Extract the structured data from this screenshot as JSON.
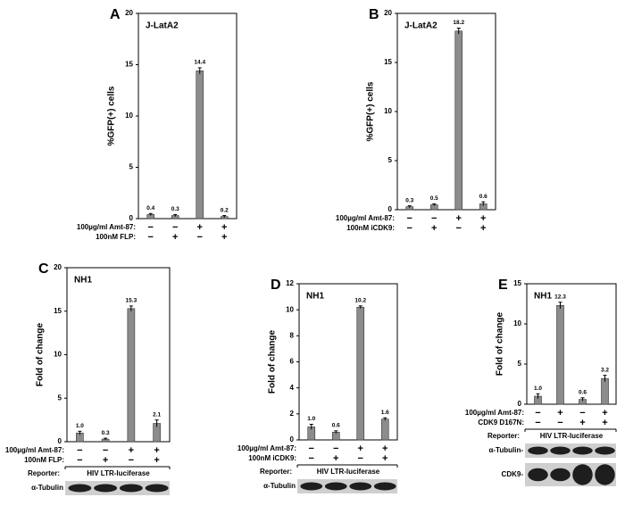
{
  "chart_data": [
    {
      "type": "bar",
      "panel": "A",
      "cell": "J-LatA2",
      "y_label": "%GFP(+) cells",
      "values": [
        0.4,
        0.3,
        14.4,
        0.2
      ],
      "errors": [
        0.1,
        0.1,
        0.3,
        0.1
      ],
      "color": "#8c8c8c",
      "ylim": [
        0,
        20
      ],
      "yticks": [
        0,
        5,
        10,
        15,
        20
      ],
      "conditions": [
        {
          "label": "100µg/ml Amt-87:",
          "signs": [
            "−",
            "−",
            "+",
            "+"
          ]
        },
        {
          "label": "100nM FLP:",
          "signs": [
            "−",
            "+",
            "−",
            "+"
          ]
        }
      ]
    },
    {
      "type": "bar",
      "panel": "B",
      "cell": "J-LatA2",
      "y_label": "%GFP(+) cells",
      "values": [
        0.3,
        0.5,
        18.2,
        0.6
      ],
      "errors": [
        0.1,
        0.1,
        0.3,
        0.2
      ],
      "color": "#8c8c8c",
      "ylim": [
        0,
        20
      ],
      "yticks": [
        0,
        5,
        10,
        15,
        20
      ],
      "conditions": [
        {
          "label": "100µg/ml Amt-87:",
          "signs": [
            "−",
            "−",
            "+",
            "+"
          ]
        },
        {
          "label": "100nM iCDK9:",
          "signs": [
            "−",
            "+",
            "−",
            "+"
          ]
        }
      ]
    },
    {
      "type": "bar",
      "panel": "C",
      "cell": "NH1",
      "y_label": "Fold of change",
      "values": [
        1,
        0.3,
        15.3,
        2.1
      ],
      "value_labels": [
        "1.0",
        "0.3",
        "15.3",
        "2.1"
      ],
      "errors": [
        0.2,
        0.1,
        0.3,
        0.4
      ],
      "color": "#8c8c8c",
      "ylim": [
        0,
        20
      ],
      "yticks": [
        0,
        5,
        10,
        15,
        20
      ],
      "conditions": [
        {
          "label": "100µg/ml Amt-87:",
          "signs": [
            "−",
            "−",
            "+",
            "+"
          ]
        },
        {
          "label": "100nM FLP:",
          "signs": [
            "−",
            "+",
            "−",
            "+"
          ]
        }
      ],
      "reporter": {
        "label": "Reporter:",
        "text": "HIV LTR-luciferase"
      },
      "blots": [
        "α-Tubulin"
      ]
    },
    {
      "type": "bar",
      "panel": "D",
      "cell": "NH1",
      "y_label": "Fold of change",
      "values": [
        1,
        0.6,
        10.2,
        1.6
      ],
      "value_labels": [
        "1.0",
        "0.6",
        "10.2",
        "1.6"
      ],
      "errors": [
        0.2,
        0.1,
        0.1,
        0.1
      ],
      "color": "#8c8c8c",
      "ylim": [
        0,
        12
      ],
      "yticks": [
        0,
        2,
        4,
        6,
        8,
        10,
        12
      ],
      "conditions": [
        {
          "label": "100µg/ml Amt-87:",
          "signs": [
            "−",
            "−",
            "+",
            "+"
          ]
        },
        {
          "label": "100nM iCDK9:",
          "signs": [
            "−",
            "+",
            "−",
            "+"
          ]
        }
      ],
      "reporter": {
        "label": "Reporter:",
        "text": "HIV LTR-luciferase"
      },
      "blots": [
        "α-Tubulin"
      ]
    },
    {
      "type": "bar",
      "panel": "E",
      "cell": "NH1",
      "y_label": "Fold of change",
      "values": [
        1,
        12.3,
        0.6,
        3.2
      ],
      "value_labels": [
        "1.0",
        "12.3",
        "0.6",
        "3.2"
      ],
      "errors": [
        0.3,
        0.4,
        0.2,
        0.4
      ],
      "color": "#8c8c8c",
      "ylim": [
        0,
        15
      ],
      "yticks": [
        0,
        5,
        10,
        15
      ],
      "conditions": [
        {
          "label": "100µg/ml Amt-87:",
          "signs": [
            "−",
            "+",
            "−",
            "+"
          ]
        },
        {
          "label": "CDK9 D167N:",
          "signs": [
            "−",
            "−",
            "+",
            "+"
          ]
        }
      ],
      "reporter": {
        "label": "Reporter:",
        "text": "HIV LTR-luciferase"
      },
      "blots": [
        "α-Tubulin-",
        "CDK9-"
      ]
    }
  ]
}
